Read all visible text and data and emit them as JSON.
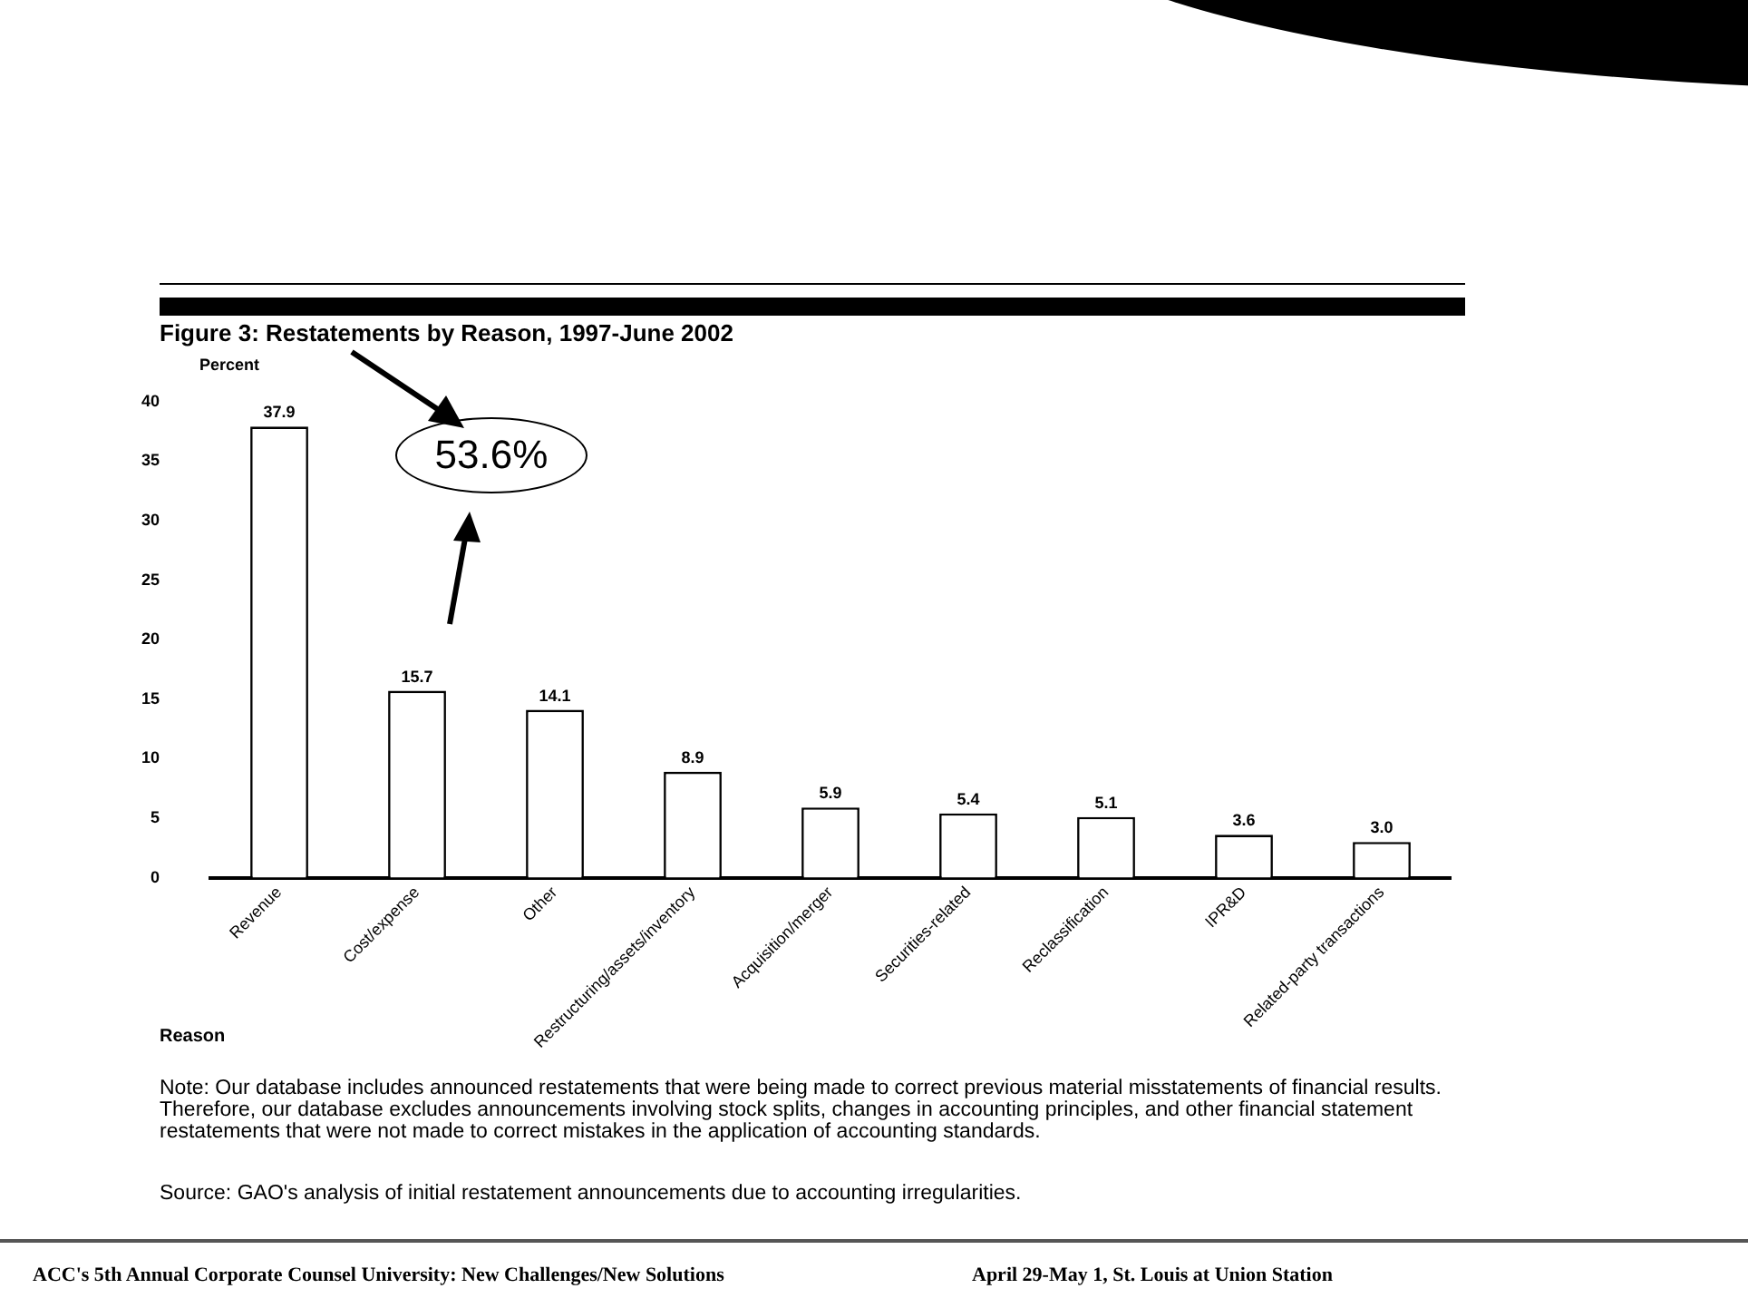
{
  "chart_data": {
    "type": "bar",
    "title": "Figure 3:  Restatements by Reason, 1997-June 2002",
    "ylabel": "Percent",
    "xlabel": "Reason",
    "categories": [
      "Revenue",
      "Cost/expense",
      "Other",
      "Restructuring/assets/inventory",
      "Acquisition/merger",
      "Securities-related",
      "Reclassification",
      "IPR&D",
      "Related-party transactions"
    ],
    "values": [
      37.9,
      15.7,
      14.1,
      8.9,
      5.9,
      5.4,
      5.1,
      3.6,
      3.0
    ],
    "value_labels": [
      "37.9",
      "15.7",
      "14.1",
      "8.9",
      "5.9",
      "5.4",
      "5.1",
      "3.6",
      "3.0"
    ],
    "color": "#ffffff",
    "grid": false,
    "legend": false,
    "ylim": [
      0,
      40
    ],
    "yticks": [
      0,
      5,
      10,
      15,
      20,
      25,
      30,
      35,
      40
    ],
    "annotations": [
      "53.6%",
      "Note:  Our database includes announced restatements that were being made to correct previous material misstatements of financial results. Therefore, our database excludes announcements involving stock splits, changes in accounting principles, and other financial statement restatements that were not made to correct mistakes in the application of accounting standards.",
      "Source: GAO's analysis of initial restatement announcements due to accounting irregularities.",
      "ACC's 5th Annual Corporate Counsel University: New Challenges/New Solutions",
      "April 29-May 1, St. Louis at Union Station"
    ]
  }
}
